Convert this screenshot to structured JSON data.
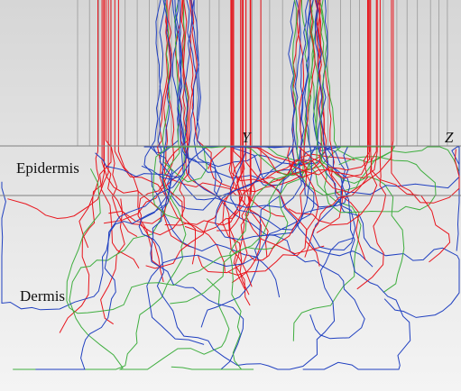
{
  "labels": {
    "epidermis": "Epidermis",
    "dermis": "Dermis",
    "axis_y": "Y",
    "axis_z": "Z"
  }
}
